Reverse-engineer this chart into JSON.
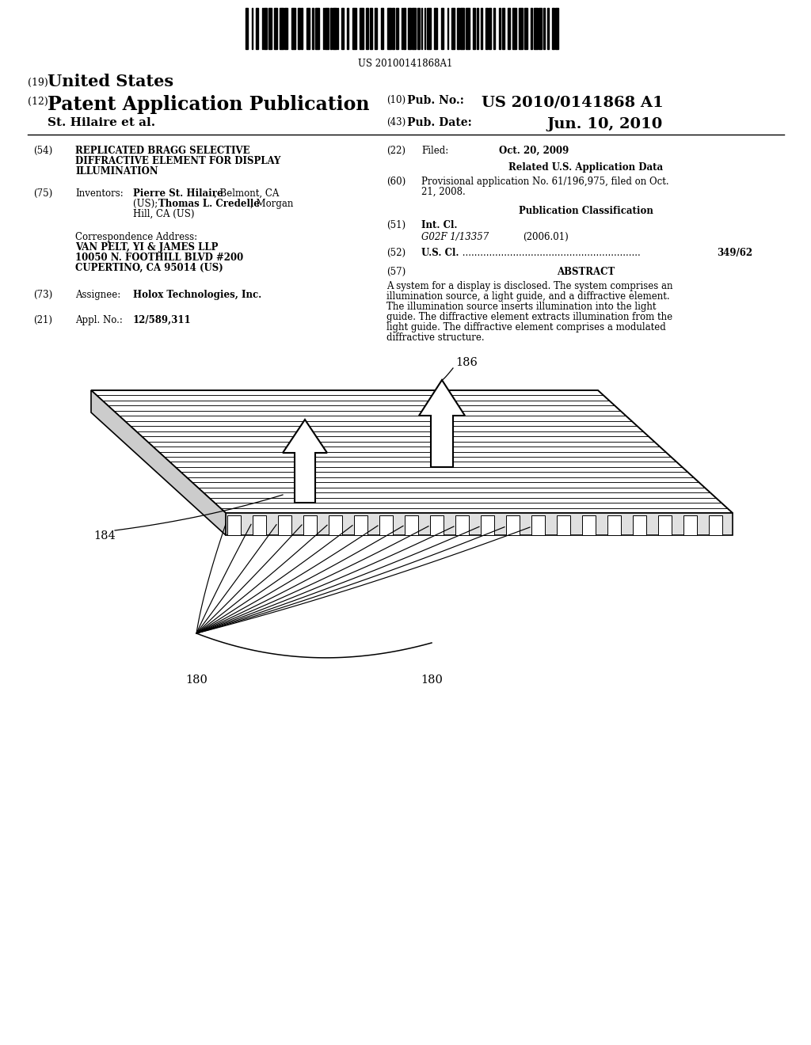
{
  "background_color": "#ffffff",
  "barcode_text": "US 20100141868A1",
  "label_186": "186",
  "label_184": "184",
  "label_180a": "180",
  "label_180b": "180"
}
